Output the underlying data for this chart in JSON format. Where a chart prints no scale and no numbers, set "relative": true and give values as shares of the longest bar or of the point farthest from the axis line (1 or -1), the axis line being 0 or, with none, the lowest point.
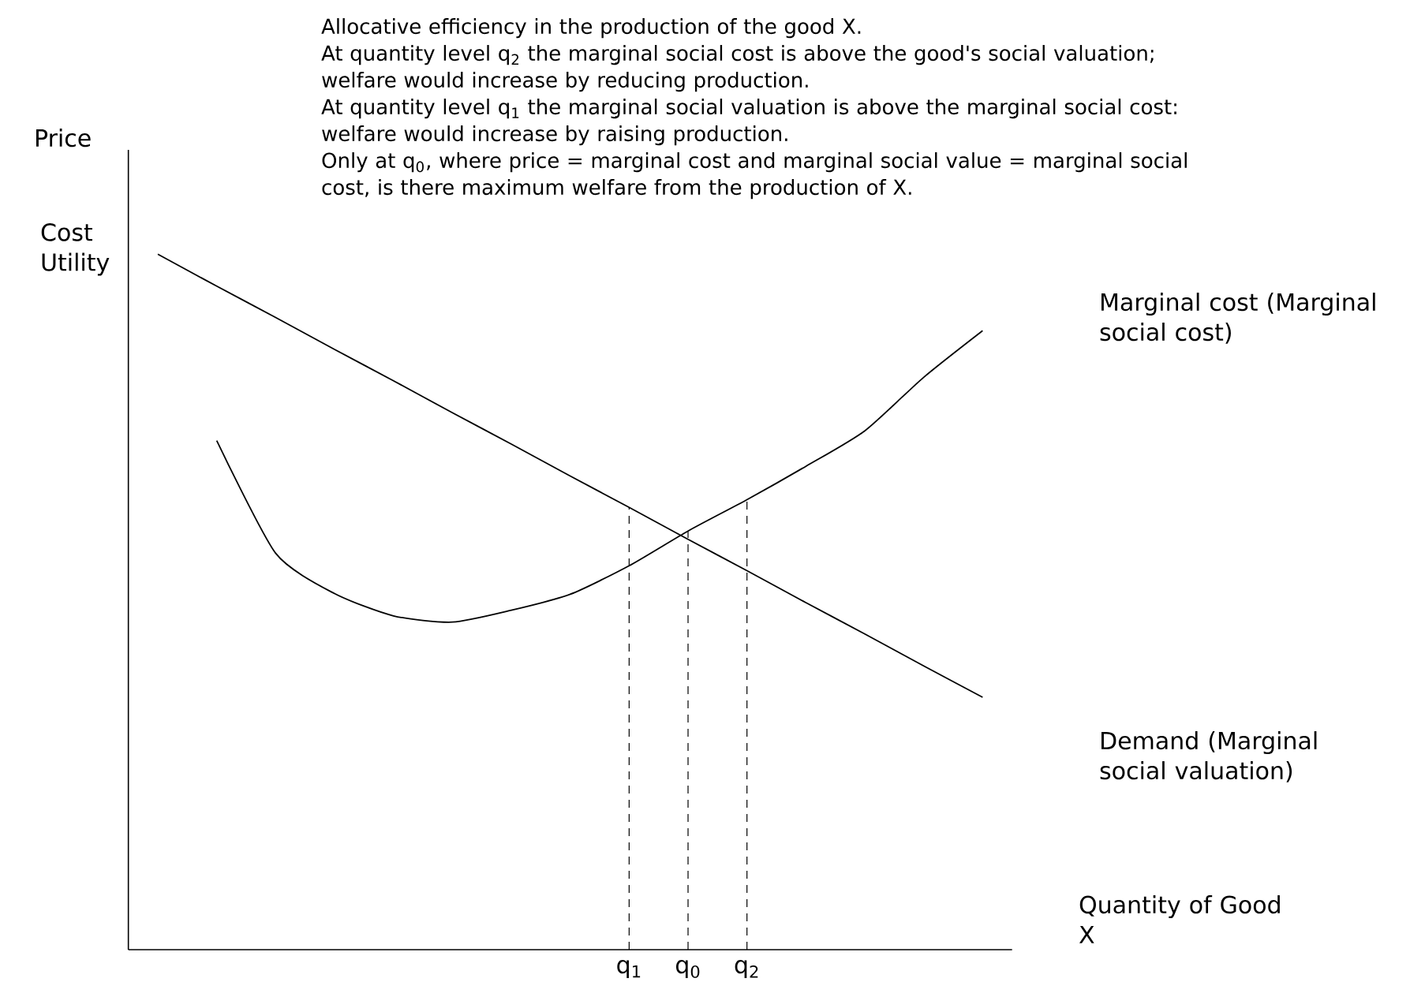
{
  "chart_data": {
    "type": "line",
    "relative": true,
    "title": "Allocative efficiency in the production of the good X.",
    "annotations": [
      "At quantity level q$_{2}$ the marginal social cost is above the good's social valuation; welfare would increase by reducing production.",
      "At quantity level q$_{1}$ the marginal social valuation is above the marginal social cost: welfare would increase by raising production.",
      "Only at q$_{0}$, where price = marginal cost and marginal social value = marginal social cost, is there maximum welfare from the production of X.",
      "Cost Utility"
    ],
    "ylabel": "Price",
    "xlabel": "Quantity of Good X",
    "categories": [
      null,
      null,
      null,
      null,
      null,
      null,
      null,
      null,
      "q$_{1}$",
      "q$_{0}$",
      "q$_{2}$",
      null,
      null,
      null,
      null
    ],
    "legend": false,
    "marker": "none",
    "line_style": "solid",
    "series": [
      {
        "name": "Demand (Marginal social valuation)",
        "color": "#000000",
        "values": [
          1.0,
          0.954,
          0.909,
          0.863,
          0.818,
          0.772,
          0.727,
          0.681,
          0.636,
          0.59,
          0.545,
          0.499,
          0.454,
          0.408,
          0.363
        ]
      },
      {
        "name": "Marginal cost (Marginal social cost)",
        "color": "#000000",
        "values": [
          null,
          0.732,
          0.57,
          0.512,
          0.48,
          0.471,
          0.488,
          0.511,
          0.552,
          0.602,
          0.647,
          0.695,
          0.746,
          0.823,
          0.89
        ]
      }
    ],
    "ref_lines": [
      {
        "axis": "x",
        "value": "q$_{1}$",
        "line_style": "dashed"
      },
      {
        "axis": "x",
        "value": "q$_{0}$",
        "line_style": "dashed"
      },
      {
        "axis": "x",
        "value": "q$_{2}$",
        "line_style": "dashed"
      }
    ]
  }
}
